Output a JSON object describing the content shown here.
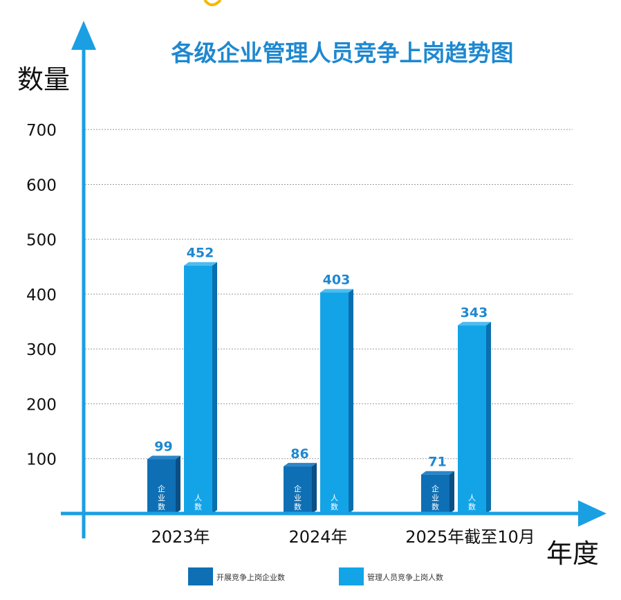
{
  "chart_data": {
    "type": "bar",
    "title": "各级企业管理人员竞争上岗趋势图",
    "xlabel": "年度",
    "ylabel": "数量",
    "categories": [
      "2023年",
      "2024年",
      "2025年截至10月"
    ],
    "series": [
      {
        "name": "开展竞争上岗企业数",
        "values": [
          99,
          86,
          71
        ],
        "in_bar_label": "企业数",
        "color": "#0e6fb4"
      },
      {
        "name": "管理人员竞争上岗人数",
        "values": [
          452,
          403,
          343
        ],
        "in_bar_label": "人数",
        "color": "#13a4e8"
      }
    ],
    "ylim": [
      0,
      700
    ],
    "yticks": [
      100,
      200,
      300,
      400,
      500,
      600,
      700
    ],
    "grid": true,
    "legend_position": "bottom",
    "colors": {
      "axis": "#1a9fe3",
      "title": "#1e88d0",
      "value_label": "#1e88d0",
      "gridline": "#999999"
    }
  }
}
